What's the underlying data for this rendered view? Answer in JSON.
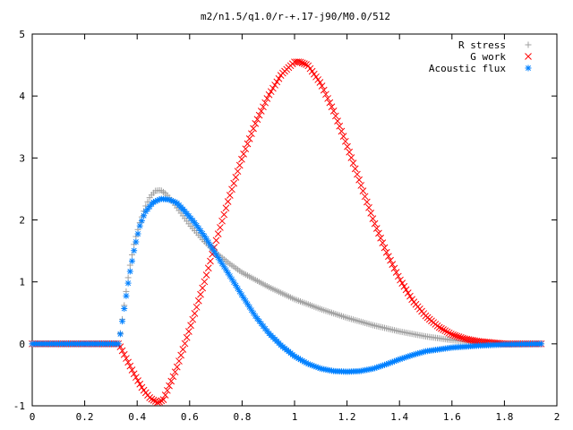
{
  "chart_data": {
    "type": "scatter",
    "title": "m2/n1.5/q1.0/r-+.17-j90/M0.0/512",
    "xlabel": "",
    "ylabel": "",
    "xlim": [
      0,
      2
    ],
    "ylim": [
      -1,
      5
    ],
    "xticks": [
      "0",
      "0.2",
      "0.4",
      "0.6",
      "0.8",
      "1",
      "1.2",
      "1.4",
      "1.6",
      "1.8",
      "2"
    ],
    "yticks": [
      "-1",
      "0",
      "1",
      "2",
      "3",
      "4",
      "5"
    ],
    "grid": false,
    "legend": "top-right",
    "series": [
      {
        "name": "R stress",
        "marker": "plus",
        "color": "#a0a0a0",
        "points": [
          [
            0.0,
            0
          ],
          [
            0.1,
            0
          ],
          [
            0.2,
            0
          ],
          [
            0.3,
            0
          ],
          [
            0.33,
            0
          ],
          [
            0.35,
            0.6
          ],
          [
            0.37,
            1.2
          ],
          [
            0.39,
            1.65
          ],
          [
            0.41,
            1.95
          ],
          [
            0.43,
            2.2
          ],
          [
            0.45,
            2.38
          ],
          [
            0.47,
            2.47
          ],
          [
            0.49,
            2.48
          ],
          [
            0.51,
            2.42
          ],
          [
            0.53,
            2.32
          ],
          [
            0.56,
            2.15
          ],
          [
            0.6,
            1.92
          ],
          [
            0.65,
            1.68
          ],
          [
            0.7,
            1.47
          ],
          [
            0.75,
            1.3
          ],
          [
            0.8,
            1.15
          ],
          [
            0.9,
            0.92
          ],
          [
            1.0,
            0.72
          ],
          [
            1.1,
            0.56
          ],
          [
            1.2,
            0.42
          ],
          [
            1.3,
            0.3
          ],
          [
            1.4,
            0.2
          ],
          [
            1.5,
            0.12
          ],
          [
            1.6,
            0.06
          ],
          [
            1.7,
            0.02
          ],
          [
            1.8,
            0.0
          ],
          [
            1.94,
            0.0
          ]
        ]
      },
      {
        "name": "G work",
        "marker": "cross",
        "color": "#ff0000",
        "points": [
          [
            0.0,
            0
          ],
          [
            0.1,
            0
          ],
          [
            0.2,
            0
          ],
          [
            0.3,
            0
          ],
          [
            0.33,
            0
          ],
          [
            0.36,
            -0.25
          ],
          [
            0.39,
            -0.5
          ],
          [
            0.42,
            -0.72
          ],
          [
            0.45,
            -0.88
          ],
          [
            0.48,
            -0.95
          ],
          [
            0.5,
            -0.9
          ],
          [
            0.52,
            -0.7
          ],
          [
            0.55,
            -0.4
          ],
          [
            0.58,
            -0.02
          ],
          [
            0.62,
            0.5
          ],
          [
            0.66,
            1.05
          ],
          [
            0.7,
            1.65
          ],
          [
            0.75,
            2.35
          ],
          [
            0.8,
            3.0
          ],
          [
            0.85,
            3.55
          ],
          [
            0.9,
            4.0
          ],
          [
            0.95,
            4.35
          ],
          [
            1.0,
            4.55
          ],
          [
            1.02,
            4.55
          ],
          [
            1.05,
            4.5
          ],
          [
            1.1,
            4.2
          ],
          [
            1.15,
            3.75
          ],
          [
            1.2,
            3.2
          ],
          [
            1.25,
            2.6
          ],
          [
            1.3,
            2.0
          ],
          [
            1.35,
            1.48
          ],
          [
            1.4,
            1.05
          ],
          [
            1.45,
            0.7
          ],
          [
            1.5,
            0.45
          ],
          [
            1.55,
            0.27
          ],
          [
            1.6,
            0.15
          ],
          [
            1.65,
            0.08
          ],
          [
            1.7,
            0.04
          ],
          [
            1.75,
            0.02
          ],
          [
            1.8,
            0.0
          ],
          [
            1.94,
            0.0
          ]
        ]
      },
      {
        "name": "Acoustic flux",
        "marker": "star",
        "color": "#0080ff",
        "points": [
          [
            0.0,
            0
          ],
          [
            0.1,
            0
          ],
          [
            0.2,
            0
          ],
          [
            0.3,
            0
          ],
          [
            0.33,
            0
          ],
          [
            0.35,
            0.55
          ],
          [
            0.37,
            1.1
          ],
          [
            0.39,
            1.55
          ],
          [
            0.41,
            1.9
          ],
          [
            0.43,
            2.12
          ],
          [
            0.46,
            2.28
          ],
          [
            0.49,
            2.34
          ],
          [
            0.52,
            2.33
          ],
          [
            0.55,
            2.28
          ],
          [
            0.58,
            2.15
          ],
          [
            0.62,
            1.95
          ],
          [
            0.66,
            1.72
          ],
          [
            0.7,
            1.45
          ],
          [
            0.75,
            1.12
          ],
          [
            0.8,
            0.78
          ],
          [
            0.85,
            0.45
          ],
          [
            0.9,
            0.18
          ],
          [
            0.95,
            -0.03
          ],
          [
            1.0,
            -0.2
          ],
          [
            1.05,
            -0.32
          ],
          [
            1.1,
            -0.4
          ],
          [
            1.15,
            -0.44
          ],
          [
            1.2,
            -0.45
          ],
          [
            1.25,
            -0.44
          ],
          [
            1.3,
            -0.4
          ],
          [
            1.35,
            -0.33
          ],
          [
            1.4,
            -0.25
          ],
          [
            1.45,
            -0.18
          ],
          [
            1.5,
            -0.12
          ],
          [
            1.6,
            -0.06
          ],
          [
            1.7,
            -0.03
          ],
          [
            1.8,
            -0.01
          ],
          [
            1.94,
            0.0
          ]
        ]
      }
    ]
  }
}
